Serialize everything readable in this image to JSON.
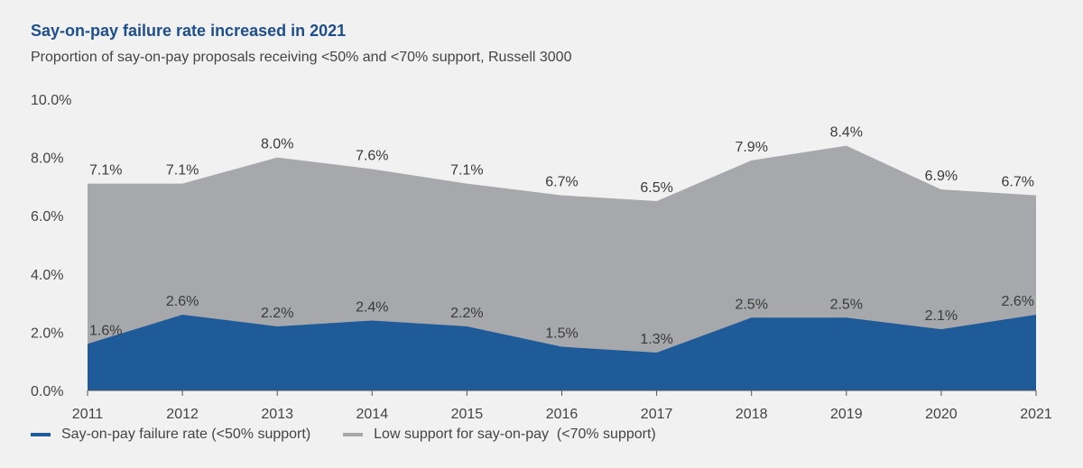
{
  "header": {
    "title": "Say-on-pay failure rate increased in 2021",
    "subtitle": "Proportion of say-on-pay proposals receiving <50% and <70% support, Russell 3000"
  },
  "chart_data": {
    "type": "area",
    "x": [
      "2011",
      "2012",
      "2013",
      "2014",
      "2015",
      "2016",
      "2017",
      "2018",
      "2019",
      "2020",
      "2021"
    ],
    "ylim": [
      0,
      10
    ],
    "yticks": [
      "0.0%",
      "2.0%",
      "4.0%",
      "6.0%",
      "8.0%",
      "10.0%"
    ],
    "grid": false,
    "legend_position": "bottom-left",
    "series": [
      {
        "name": "Low support for say-on-pay  (<70% support)",
        "color": "#a7a8ab",
        "values": [
          7.1,
          7.1,
          8.0,
          7.6,
          7.1,
          6.7,
          6.5,
          7.9,
          8.4,
          6.9,
          6.7
        ],
        "labels": [
          "7.1%",
          "7.1%",
          "8.0%",
          "7.6%",
          "7.1%",
          "6.7%",
          "6.5%",
          "7.9%",
          "8.4%",
          "6.9%",
          "6.7%"
        ]
      },
      {
        "name": "Say-on-pay failure rate (<50% support)",
        "color": "#1f5a99",
        "values": [
          1.6,
          2.6,
          2.2,
          2.4,
          2.2,
          1.5,
          1.3,
          2.5,
          2.5,
          2.1,
          2.6
        ],
        "labels": [
          "1.6%",
          "2.6%",
          "2.2%",
          "2.4%",
          "2.2%",
          "1.5%",
          "1.3%",
          "2.5%",
          "2.5%",
          "2.1%",
          "2.6%"
        ]
      }
    ]
  }
}
